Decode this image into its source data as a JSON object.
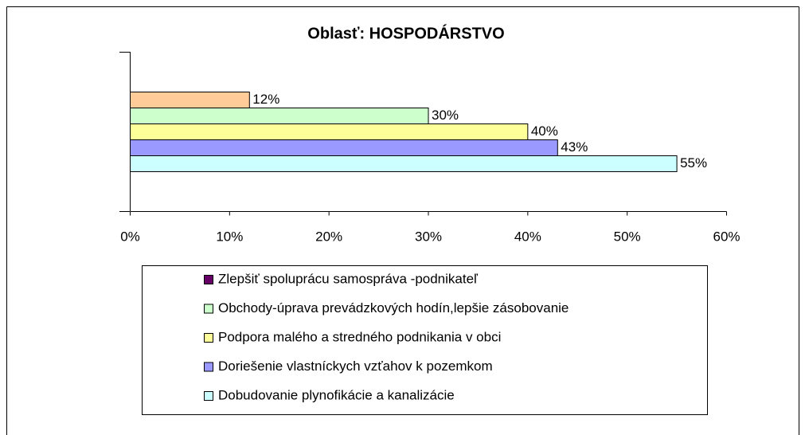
{
  "chart_data": {
    "type": "bar",
    "orientation": "horizontal",
    "title": "Oblasť: HOSPODÁRSTVO",
    "categories": [
      null
    ],
    "series": [
      {
        "name": "Zlepšiť spoluprácu samospráva -podnikateľ",
        "color": "#ffcc99",
        "legend_color": "#660066",
        "values": [
          12
        ],
        "value_labels": [
          "12%"
        ]
      },
      {
        "name": "Obchody-úprava prevádzkových hodín,lepšie zásobovanie",
        "color": "#ccffcc",
        "legend_color": "#ccffcc",
        "values": [
          30
        ],
        "value_labels": [
          "30%"
        ]
      },
      {
        "name": "Podpora malého a stredného podnikania v obci",
        "color": "#ffff99",
        "legend_color": "#ffff99",
        "values": [
          40
        ],
        "value_labels": [
          "40%"
        ]
      },
      {
        "name": "Doriešenie vlastníckych vzťahov k pozemkom",
        "color": "#9999ff",
        "legend_color": "#9999ff",
        "values": [
          43
        ],
        "value_labels": [
          "43%"
        ]
      },
      {
        "name": "Dobudovanie plynofikácie a kanalizácie",
        "color": "#ccffff",
        "legend_color": "#ccffff",
        "values": [
          55
        ],
        "value_labels": [
          "55%"
        ]
      }
    ],
    "xlim": [
      0,
      60
    ],
    "xticks": [
      {
        "value": 0,
        "label": "0%"
      },
      {
        "value": 10,
        "label": "10%"
      },
      {
        "value": 20,
        "label": "20%"
      },
      {
        "value": 30,
        "label": "30%"
      },
      {
        "value": 40,
        "label": "40%"
      },
      {
        "value": 50,
        "label": "50%"
      },
      {
        "value": 60,
        "label": "60%"
      }
    ],
    "grid": false,
    "legend": "bottom"
  }
}
